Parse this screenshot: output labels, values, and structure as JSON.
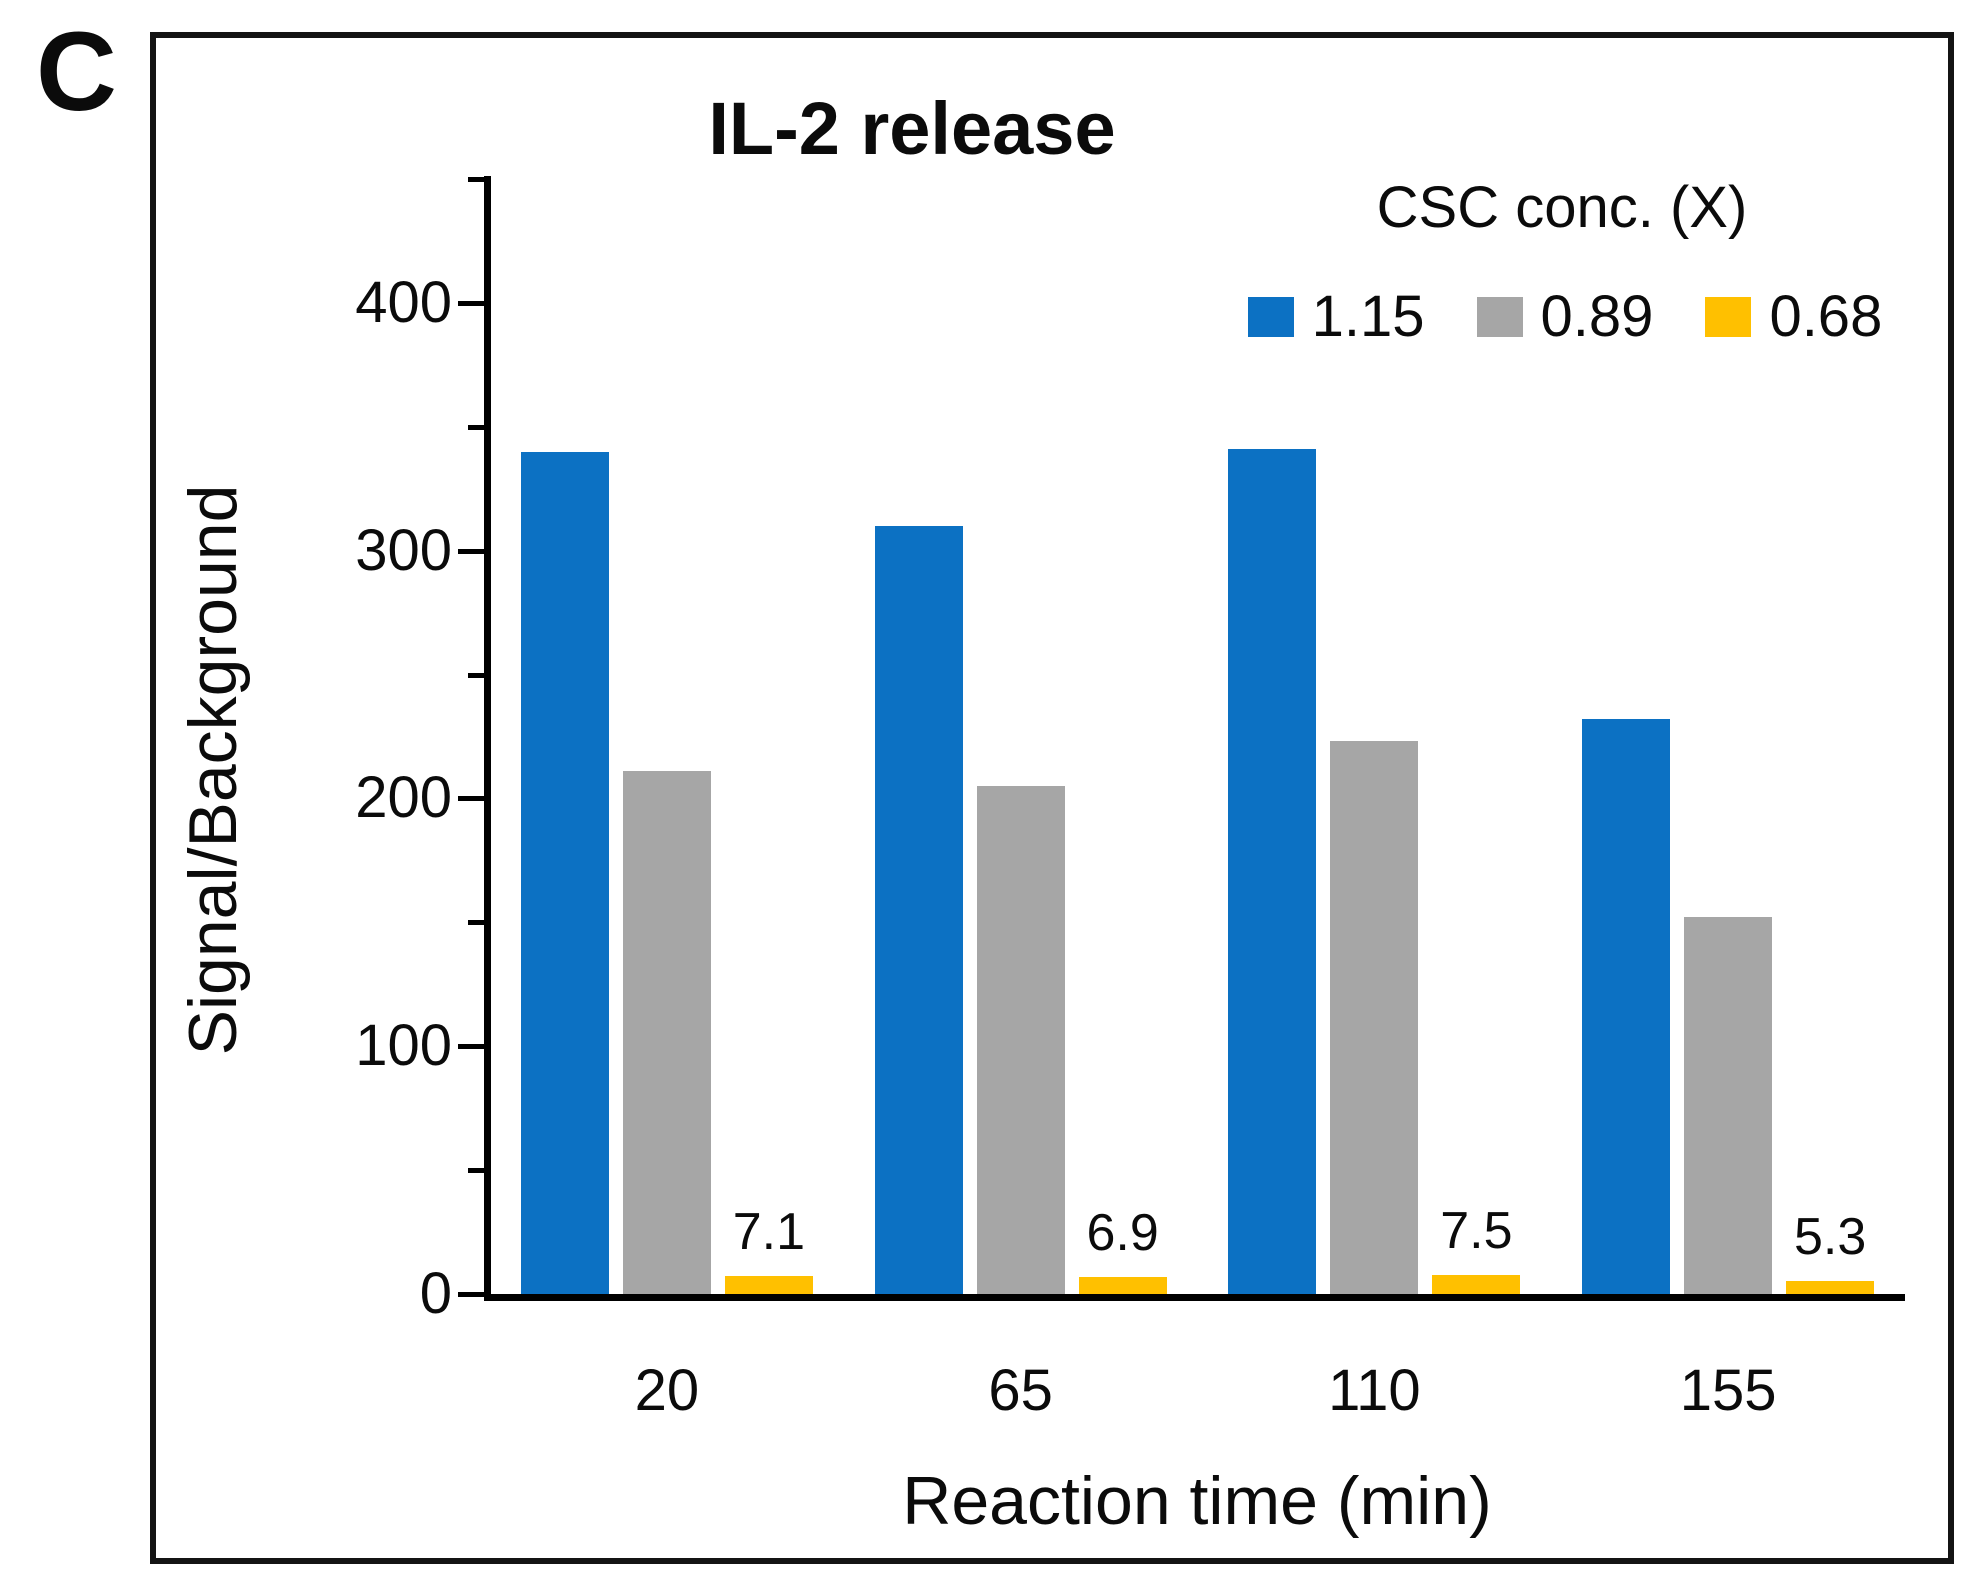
{
  "panel_label": "C",
  "chart_data": {
    "type": "bar",
    "title": "IL-2 release",
    "xlabel": "Reaction time (min)",
    "ylabel": "Signal/Background",
    "categories": [
      "20",
      "65",
      "110",
      "155"
    ],
    "series": [
      {
        "name": "1.15",
        "color": "#0C71C3",
        "values": [
          340,
          310,
          341,
          232
        ]
      },
      {
        "name": "0.89",
        "color": "#A6A6A6",
        "values": [
          211,
          205,
          223,
          152
        ]
      },
      {
        "name": "0.68",
        "color": "#FFC000",
        "values": [
          7.1,
          6.9,
          7.5,
          5.3
        ],
        "data_labels": [
          "7.1",
          "6.9",
          "7.5",
          "5.3"
        ]
      }
    ],
    "legend_title": "CSC conc. (X)",
    "legend_position": "top-right",
    "ylim": [
      0,
      450
    ],
    "y_major_tick": 100,
    "y_minor_tick": 50,
    "grid": false,
    "axis_color": "#000000",
    "text_color": "#0b0b0b"
  }
}
